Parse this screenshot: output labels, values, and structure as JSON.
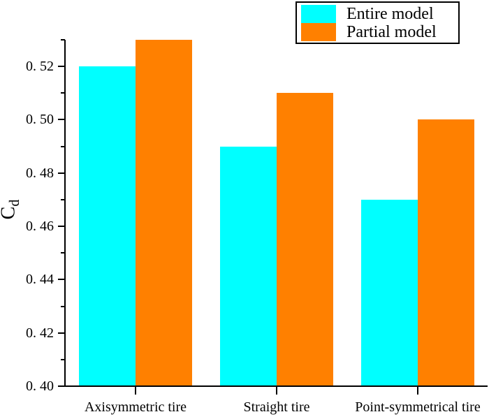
{
  "figure": {
    "background": "#FFFFFF",
    "axis_color": "#000000"
  },
  "chart_data": {
    "type": "bar",
    "title": "",
    "categories": [
      "Axisymmetric tire",
      "Straight tire",
      "Point-symmetrical tire"
    ],
    "series": [
      {
        "name": "Entire model",
        "color": "#00FFFF",
        "values": [
          0.52,
          0.49,
          0.47
        ]
      },
      {
        "name": "Partial model",
        "color": "#FF8000",
        "values": [
          0.53,
          0.51,
          0.5
        ]
      }
    ],
    "xlabel": "",
    "ylabel_base": "C",
    "ylabel_sub": "d",
    "ylim": [
      0.4,
      0.53
    ],
    "ytick_values": [
      0.4,
      0.42,
      0.44,
      0.46,
      0.48,
      0.5,
      0.52
    ],
    "ytick_labels": [
      "0. 40",
      "0. 42",
      "0. 44",
      "0. 46",
      "0. 48",
      "0. 50",
      "0. 52"
    ],
    "yminor_values": [
      0.41,
      0.43,
      0.45,
      0.47,
      0.49,
      0.51,
      0.53
    ],
    "grid": false,
    "legend_position": "top-right"
  }
}
